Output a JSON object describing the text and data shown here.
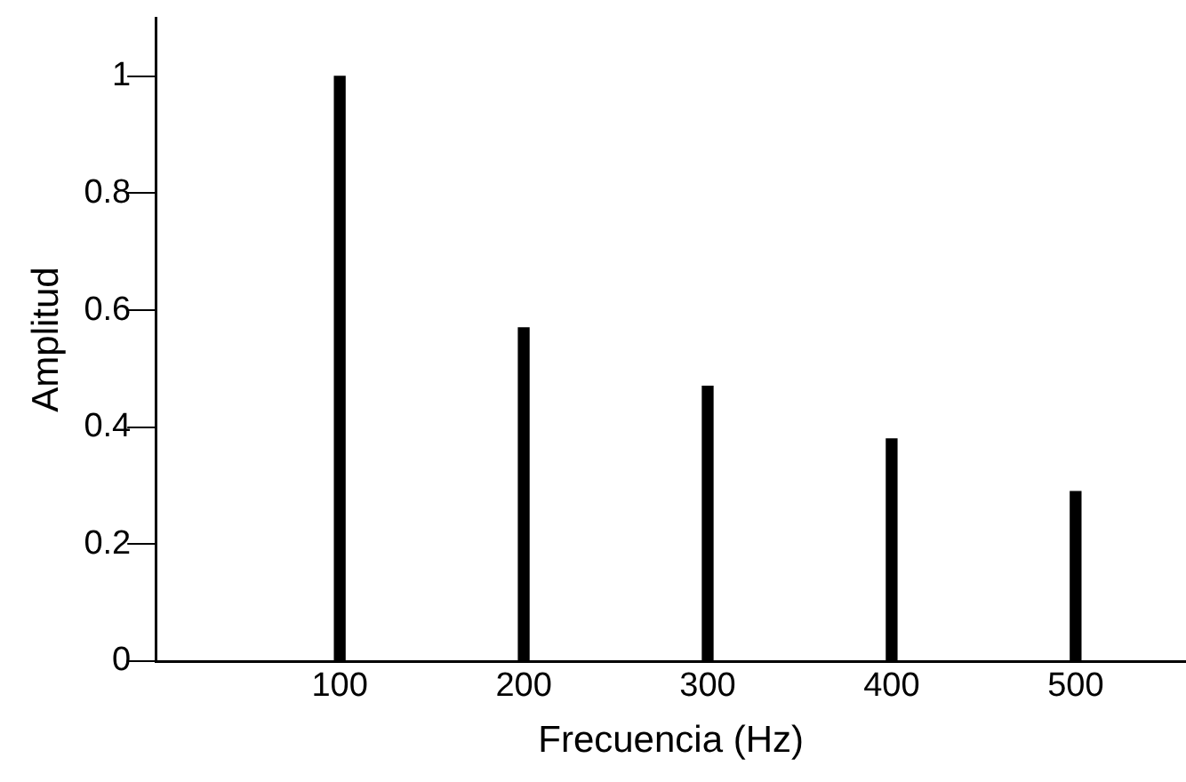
{
  "chart_data": {
    "type": "bar",
    "xlabel": "Frecuencia (Hz)",
    "ylabel": "Amplitud",
    "x": [
      100,
      200,
      300,
      400,
      500
    ],
    "values": [
      1,
      0.57,
      0.47,
      0.38,
      0.29
    ],
    "color": "#000000",
    "xlim": [
      0,
      560
    ],
    "xticks": [
      100,
      200,
      300,
      400,
      500
    ],
    "ylim": [
      0,
      1.1
    ],
    "yticks": [
      0,
      0.2,
      0.4,
      0.6,
      0.8,
      1
    ],
    "grid": false,
    "legend": false
  }
}
